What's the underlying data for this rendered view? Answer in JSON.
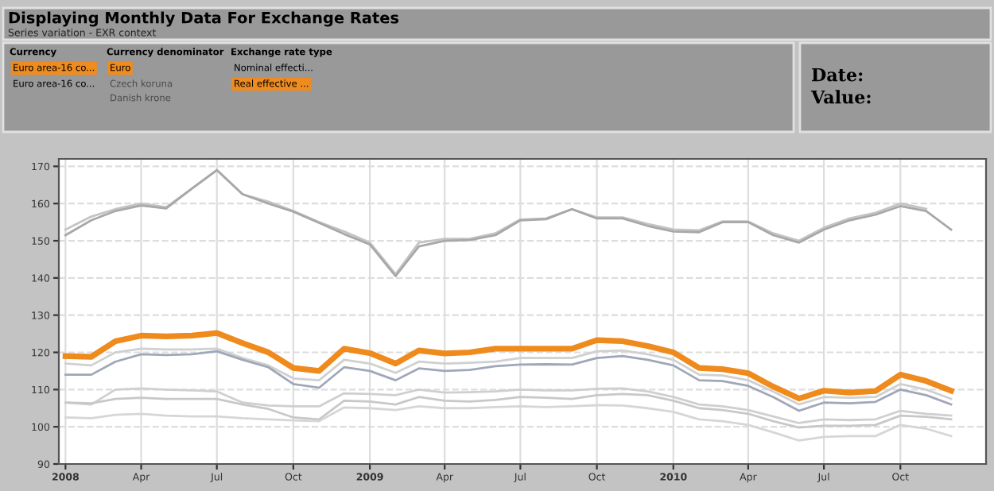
{
  "chart_data": {
    "type": "line",
    "title": "Displaying Monthly Data For Exchange Rates",
    "subtitle": "Series variation - EXR context",
    "annotations": [
      "Currency",
      "Euro area-16 co...",
      "Euro area-16 co...",
      "Currency denominator",
      "Euro",
      "Czech koruna",
      "Danish krone",
      "Exchange rate type",
      "Nominal effecti...",
      "Real effective ...",
      "Date:",
      "Value:"
    ],
    "x": [
      "2008-01",
      "2008-02",
      "2008-03",
      "2008-04",
      "2008-05",
      "2008-06",
      "2008-07",
      "2008-08",
      "2008-09",
      "2008-10",
      "2008-11",
      "2008-12",
      "2009-01",
      "2009-02",
      "2009-03",
      "2009-04",
      "2009-05",
      "2009-06",
      "2009-07",
      "2009-08",
      "2009-09",
      "2009-10",
      "2009-11",
      "2009-12",
      "2010-01",
      "2010-02",
      "2010-03",
      "2010-04",
      "2010-05",
      "2010-06",
      "2010-07",
      "2010-08",
      "2010-09",
      "2010-10",
      "2010-11",
      "2010-12"
    ],
    "series": [
      {
        "color": "#c4c4c4",
        "values": [
          153,
          156.5,
          158.5,
          160,
          159,
          164,
          169,
          162.5,
          160.5,
          158,
          155,
          152.5,
          149.5,
          141,
          149.5,
          150.5,
          150.5,
          152,
          155.7,
          156,
          158.5,
          156.3,
          156.3,
          154.5,
          153,
          152.8,
          155.2,
          155.2,
          152,
          150,
          153.5,
          156,
          157.5,
          160,
          158.6,
          null
        ]
      },
      {
        "color": "#a8a8a8",
        "values": [
          151.5,
          155.5,
          158,
          159.5,
          158.7,
          164,
          169,
          162.5,
          160,
          157.8,
          154.8,
          151.8,
          149,
          140.5,
          148.5,
          150,
          150.2,
          151.5,
          155.5,
          155.8,
          158.5,
          156,
          156,
          154,
          152.5,
          152.3,
          155,
          155,
          151.5,
          149.5,
          153,
          155.5,
          157,
          159.3,
          158,
          153
        ]
      },
      {
        "color": "#d0d0d0",
        "values": [
          117,
          116.5,
          120,
          121,
          120.8,
          120.8,
          121,
          118.5,
          116.5,
          113,
          112.5,
          118,
          117,
          114.5,
          117.5,
          117,
          117.2,
          117.5,
          118.5,
          118.5,
          118.5,
          120.3,
          120.5,
          119.5,
          118,
          114,
          113.8,
          112.5,
          109.5,
          106,
          108,
          107.8,
          108,
          111.5,
          110,
          107.5
        ]
      },
      {
        "color": "#9fa7b8",
        "values": [
          114,
          114,
          117.5,
          119.5,
          119.3,
          119.5,
          120.3,
          118,
          116,
          111.5,
          110.5,
          116,
          115,
          112.5,
          115.7,
          115,
          115.3,
          116.3,
          116.7,
          116.8,
          116.7,
          118.5,
          119,
          118,
          116.5,
          112.5,
          112.3,
          111,
          108,
          104.3,
          106.5,
          106.3,
          106.7,
          110,
          108.5,
          106
        ]
      },
      {
        "color": "#cfcfcf",
        "values": [
          106.5,
          106,
          110,
          110.3,
          110,
          109.8,
          109.5,
          106.5,
          105.7,
          105.5,
          105.5,
          109,
          108.8,
          108.5,
          110,
          109.2,
          109.3,
          109.5,
          110,
          109.8,
          109.8,
          110.2,
          110.3,
          109.5,
          108,
          106,
          105.5,
          104.5,
          102.8,
          101,
          102,
          101.8,
          102,
          104.3,
          103.5,
          103
        ]
      },
      {
        "color": "#c8c8c8",
        "values": [
          106.5,
          106.3,
          107.5,
          107.8,
          107.5,
          107.5,
          107.5,
          106,
          104.8,
          102.5,
          102,
          107,
          106.8,
          106,
          108,
          107,
          106.8,
          107.2,
          108,
          107.8,
          107.5,
          108.5,
          108.8,
          108.5,
          107,
          105,
          104.5,
          103.5,
          101.5,
          99.8,
          100.3,
          100.3,
          100.5,
          103,
          102.7,
          102
        ]
      },
      {
        "color": "#d6d6d6",
        "values": [
          102.5,
          102.3,
          103.2,
          103.5,
          103,
          102.8,
          102.8,
          102.3,
          102,
          101.7,
          101.5,
          105.2,
          105,
          104.5,
          105.5,
          105,
          105,
          105.3,
          105.5,
          105.3,
          105.5,
          105.8,
          105.7,
          105,
          104,
          102,
          101.5,
          100.5,
          98.5,
          96.3,
          97.3,
          97.5,
          97.5,
          100.5,
          99.5,
          97.5
        ]
      },
      {
        "color": "#ef8a1c",
        "values": [
          119,
          118.8,
          123,
          124.5,
          124.3,
          124.5,
          125.2,
          122.5,
          120,
          115.8,
          115,
          121,
          119.8,
          117,
          120.5,
          119.7,
          120,
          121,
          121,
          121,
          121,
          123.3,
          123,
          121.7,
          120,
          115.8,
          115.5,
          114.4,
          110.8,
          107.6,
          109.7,
          109.2,
          109.6,
          114,
          112.3,
          109.7
        ]
      }
    ],
    "xlim": [
      "2007-12-24",
      "2011-01-12"
    ],
    "xticks": [
      {
        "value": "2008-01-01",
        "label": "2008"
      },
      {
        "value": "2008-04-01",
        "label": "Apr"
      },
      {
        "value": "2008-07-01",
        "label": "Jul"
      },
      {
        "value": "2008-10-01",
        "label": "Oct"
      },
      {
        "value": "2009-01-01",
        "label": "2009"
      },
      {
        "value": "2009-04-01",
        "label": "Apr"
      },
      {
        "value": "2009-07-01",
        "label": "Jul"
      },
      {
        "value": "2009-10-01",
        "label": "Oct"
      },
      {
        "value": "2010-01-01",
        "label": "2010"
      },
      {
        "value": "2010-04-01",
        "label": "Apr"
      },
      {
        "value": "2010-07-01",
        "label": "Jul"
      },
      {
        "value": "2010-10-01",
        "label": "Oct"
      }
    ],
    "ylim": [
      90,
      172
    ],
    "yticks": [
      90,
      100,
      110,
      120,
      130,
      140,
      150,
      160,
      170
    ],
    "grid": true,
    "marker": "none",
    "line_style": "solid"
  }
}
